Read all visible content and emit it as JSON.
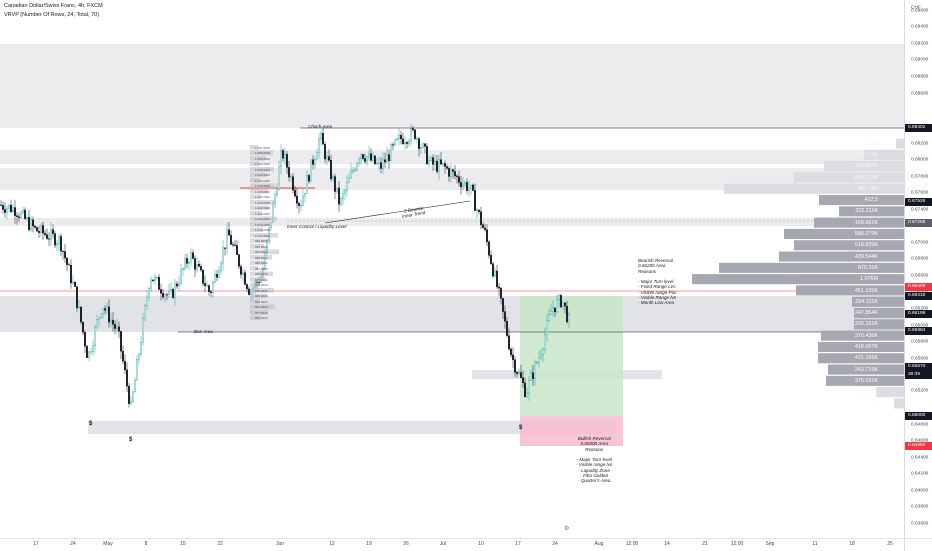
{
  "header": {
    "title": "Canadian Dollar/Swiss Franc, 4h, FXCM",
    "indicator": "VRVP (Number Of Rows, 24, Total, 70)"
  },
  "price_axis": {
    "currency": "CHF",
    "ticks": [
      "0.69600",
      "0.69400",
      "0.69200",
      "0.69000",
      "0.68800",
      "0.68600",
      "0.68200",
      "0.68000",
      "0.67800",
      "0.67600",
      "0.67400",
      "0.67200",
      "0.67000",
      "0.66800",
      "0.66600",
      "0.66400",
      "0.66200",
      "0.66000",
      "0.65800",
      "0.65600",
      "0.65400",
      "0.65200",
      "0.64800",
      "0.64600",
      "0.64400",
      "0.64200",
      "0.64000",
      "0.63800",
      "0.63600"
    ],
    "badges": [
      "0.68402",
      "0.67526",
      "0.67268",
      "0.66409",
      "0.66415",
      "0.66199",
      "0.65984",
      "0.65570",
      "39:39",
      "0.65000",
      "0.64650"
    ]
  },
  "time_axis": {
    "ticks": [
      "17",
      "24",
      "May",
      "8",
      "15",
      "22",
      "Jun",
      "12",
      "19",
      "26",
      "Jul",
      "10",
      "17",
      "24",
      "Aug",
      "12:00",
      "14",
      "21",
      "12:00",
      "Sep",
      "11",
      "18",
      "25"
    ]
  },
  "annotations": {
    "choch": "Choch Area",
    "bos": "Bos Area",
    "inner_control": "Inner Control / Liquidity Level",
    "touch": "2 Bounce",
    "inner_trend": "Inner Trend",
    "bearish": [
      "Bearish Reversal",
      "0.66200 Area",
      "Reasons",
      "",
      "- Major Turn level",
      "- Fixed Range Lvn",
      "- Visible range Poc",
      "- Visible Range lvn",
      "- Month Low Area"
    ],
    "bullish": [
      "Bullish Reversal",
      "0.65000 Area",
      "Reasons",
      "",
      "- Major Turn level",
      "- Visible range lvn",
      "- Liquidity Zone",
      "- Fibo Golden",
      "- Quarter's Area"
    ],
    "dollar": "$"
  },
  "volume_profile": {
    "rows": [
      "308",
      "287.75K",
      "356.895K",
      "898.217K",
      "861.38K",
      "412.5",
      "322.211K",
      "169.661K",
      "588.279K",
      "519.899K",
      "439.544K",
      "870.31K",
      "1.076M",
      "451.105K",
      "294.311K",
      "247.854K",
      "230.151K",
      "370.436K",
      "418.067K",
      "421.166K",
      "343.715K",
      "375.031K",
      "151.86K",
      "62"
    ]
  },
  "fixed_range_labels": [
    "1.061.0000",
    "1.056.0000",
    "1.055.0000",
    "1.052.0000",
    "1.046.0000",
    "1.044.0000",
    "1.035.0000",
    "1.033.0000",
    "1.030.0000",
    "1.027.0000",
    "1.025.0000",
    "1.022.0000",
    "1.020.0000",
    "1.015.0000",
    "1.010.0000",
    "1.006.0000",
    "1.002.0000",
    "998.0000",
    "995.0000",
    "992.0000",
    "988.0000",
    "985.0000",
    "982.0000",
    "978.0000",
    "975.0000",
    "972.0000",
    "968.0000",
    "965.0000",
    "962.0000",
    "960.0000",
    "957.0000",
    "955.0000"
  ],
  "colors": {
    "up": "#26a69a",
    "down": "#131722",
    "zone_gray": "#e6e7ea",
    "profit": "#c8e6c9",
    "loss": "#f8bbd0",
    "profile": "#a5a8b1",
    "red_line": "#f23645"
  },
  "icons": {
    "gear": "gear-icon"
  }
}
